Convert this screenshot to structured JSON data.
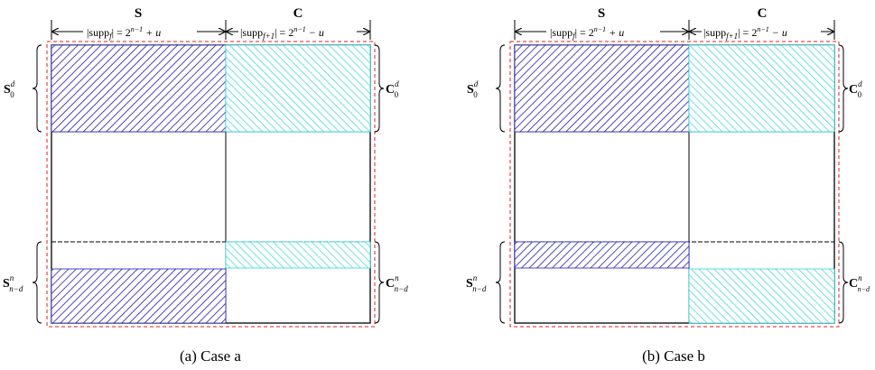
{
  "labels": {
    "S": "S",
    "C": "C",
    "S0_main": "S",
    "S0_sup": "d",
    "S0_sub": "0",
    "C0_main": "C",
    "C0_sup": "d",
    "C0_sub": "0",
    "Snd_main": "S",
    "Snd_sup": "n",
    "Snd_sub": "n−d",
    "Cnd_main": "C",
    "Cnd_sup": "n",
    "Cnd_sub": "n−d",
    "Cnd_sub_b": "n−d",
    "supp_f_left": "|supp",
    "supp_f_sub": "f",
    "supp_f_right": "| = 2",
    "supp_f_exp": "n−1",
    "supp_f_tail": " + u",
    "supp_f1_left": "|supp",
    "supp_f1_sub": "f+1",
    "supp_f1_right": "| = 2",
    "supp_f1_exp": "n−1",
    "supp_f1_tail": " − u"
  },
  "captions": {
    "a": "(a) Case a",
    "b": "(b) Case b"
  },
  "colors": {
    "blue_hatch": "#1e1eb4",
    "cyan_hatch": "#33d6d6",
    "red_dash": "#e02020"
  }
}
